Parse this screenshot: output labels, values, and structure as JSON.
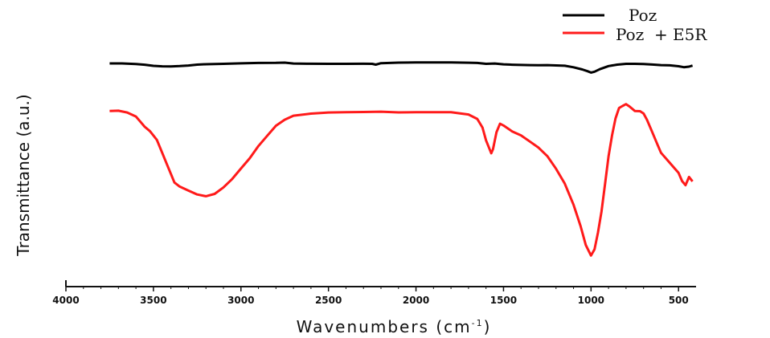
{
  "chart_data": {
    "type": "line",
    "title": "",
    "xlabel": "Wavenumbers (cm",
    "xlabel_sup": "-1",
    "xlabel_close": ")",
    "ylabel": "Transmittance (a.u.)",
    "xlim": [
      4000,
      400
    ],
    "x_reversed": true,
    "y_ticks_shown": false,
    "grid": false,
    "legend_position": "top-right",
    "x_ticks": [
      4000,
      3500,
      3000,
      2500,
      2000,
      1500,
      1000,
      500
    ],
    "x_tick_labels": [
      "4000",
      "3500",
      "3000",
      "2500",
      "2000",
      "1500",
      "1000",
      "500"
    ],
    "series": [
      {
        "name": "Poz",
        "color": "#000000",
        "x": [
          3750,
          3680,
          3600,
          3550,
          3500,
          3450,
          3400,
          3350,
          3300,
          3250,
          3200,
          3100,
          3000,
          2900,
          2800,
          2750,
          2700,
          2600,
          2500,
          2400,
          2300,
          2250,
          2230,
          2200,
          2100,
          2000,
          1900,
          1800,
          1700,
          1650,
          1600,
          1550,
          1500,
          1450,
          1400,
          1350,
          1300,
          1250,
          1200,
          1150,
          1100,
          1050,
          1020,
          1000,
          980,
          950,
          900,
          850,
          800,
          750,
          700,
          650,
          600,
          550,
          500,
          470,
          440,
          420
        ],
        "y": [
          0.9,
          0.905,
          0.9,
          0.89,
          0.87,
          0.86,
          0.855,
          0.855,
          0.86,
          0.87,
          0.875,
          0.88,
          0.89,
          0.9,
          0.905,
          0.915,
          0.905,
          0.905,
          0.905,
          0.905,
          0.905,
          0.9,
          0.88,
          0.9,
          0.905,
          0.905,
          0.905,
          0.905,
          0.905,
          0.905,
          0.895,
          0.905,
          0.895,
          0.89,
          0.885,
          0.88,
          0.875,
          0.87,
          0.86,
          0.85,
          0.82,
          0.78,
          0.75,
          0.73,
          0.75,
          0.8,
          0.86,
          0.89,
          0.905,
          0.905,
          0.9,
          0.885,
          0.87,
          0.86,
          0.84,
          0.82,
          0.83,
          0.85
        ]
      },
      {
        "name": "Poz  + E5R",
        "color": "#ff1a1a",
        "x": [
          3750,
          3700,
          3650,
          3600,
          3570,
          3550,
          3520,
          3500,
          3480,
          3450,
          3420,
          3400,
          3380,
          3350,
          3300,
          3250,
          3200,
          3150,
          3100,
          3050,
          3000,
          2950,
          2900,
          2850,
          2800,
          2750,
          2700,
          2600,
          2500,
          2400,
          2300,
          2200,
          2100,
          2000,
          1900,
          1800,
          1700,
          1650,
          1620,
          1600,
          1580,
          1570,
          1560,
          1540,
          1520,
          1500,
          1450,
          1400,
          1350,
          1300,
          1250,
          1200,
          1150,
          1100,
          1060,
          1030,
          1000,
          980,
          960,
          940,
          920,
          900,
          880,
          860,
          840,
          820,
          800,
          780,
          750,
          720,
          700,
          680,
          650,
          620,
          600,
          560,
          520,
          500,
          480,
          460,
          440,
          420
        ],
        "y": [
          0.7,
          0.7,
          0.69,
          0.67,
          0.64,
          0.62,
          0.6,
          0.58,
          0.56,
          0.5,
          0.44,
          0.4,
          0.36,
          0.34,
          0.32,
          0.3,
          0.29,
          0.3,
          0.33,
          0.37,
          0.42,
          0.47,
          0.53,
          0.58,
          0.63,
          0.66,
          0.68,
          0.69,
          0.695,
          0.695,
          0.695,
          0.695,
          0.69,
          0.69,
          0.69,
          0.69,
          0.68,
          0.66,
          0.62,
          0.56,
          0.52,
          0.5,
          0.52,
          0.6,
          0.64,
          0.63,
          0.6,
          0.58,
          0.55,
          0.52,
          0.48,
          0.42,
          0.35,
          0.25,
          0.15,
          0.06,
          0.01,
          0.04,
          0.12,
          0.22,
          0.35,
          0.48,
          0.58,
          0.66,
          0.71,
          0.72,
          0.73,
          0.72,
          0.7,
          0.7,
          0.69,
          0.66,
          0.6,
          0.54,
          0.5,
          0.46,
          0.42,
          0.4,
          0.36,
          0.34,
          0.38,
          0.36
        ]
      }
    ]
  }
}
